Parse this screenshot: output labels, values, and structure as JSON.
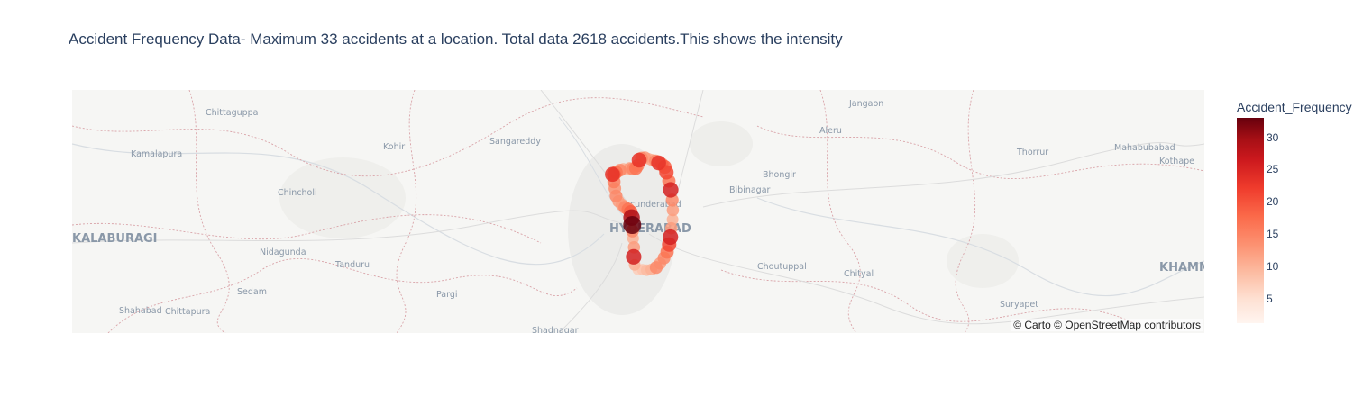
{
  "title": "Accident Frequency Data- Maximum 33 accidents at a location. Total data 2618 accidents.This shows the intensity",
  "map": {
    "attribution": "© Carto © OpenStreetMap contributors",
    "place_labels": [
      {
        "name": "Chittaguppa",
        "size": "small"
      },
      {
        "name": "Kamalapura",
        "size": "small"
      },
      {
        "name": "Kohir",
        "size": "small"
      },
      {
        "name": "Sangareddy",
        "size": "small"
      },
      {
        "name": "Chincholi",
        "size": "small"
      },
      {
        "name": "KALABURAGI",
        "size": "large"
      },
      {
        "name": "Nidagunda",
        "size": "small"
      },
      {
        "name": "Tanduru",
        "size": "small"
      },
      {
        "name": "Sedam",
        "size": "small"
      },
      {
        "name": "Shahabad",
        "size": "small"
      },
      {
        "name": "Chittapura",
        "size": "small"
      },
      {
        "name": "Pargi",
        "size": "small"
      },
      {
        "name": "Shadnagar",
        "size": "small"
      },
      {
        "name": "Secunderabad",
        "size": "small"
      },
      {
        "name": "HYDERABAD",
        "size": "large"
      },
      {
        "name": "Bhongir",
        "size": "small"
      },
      {
        "name": "Bibinagar",
        "size": "small"
      },
      {
        "name": "Aleru",
        "size": "small"
      },
      {
        "name": "Jangaon",
        "size": "small"
      },
      {
        "name": "Choutuppal",
        "size": "small"
      },
      {
        "name": "Chityal",
        "size": "small"
      },
      {
        "name": "Thorrur",
        "size": "small"
      },
      {
        "name": "Mahabubabad",
        "size": "small"
      },
      {
        "name": "Kothape",
        "size": "small"
      },
      {
        "name": "Suryapet",
        "size": "small"
      },
      {
        "name": "KHAMM",
        "size": "large"
      }
    ]
  },
  "colorbar": {
    "title": "Accident_Frequency",
    "colorscale": [
      "#fff5f0",
      "#fee0d2",
      "#fcbba1",
      "#fc9272",
      "#fb6a4a",
      "#ef3b2c",
      "#cb181d",
      "#a50f15",
      "#67000d"
    ],
    "range": [
      1,
      33
    ],
    "ticks": [
      "30",
      "25",
      "20",
      "15",
      "10",
      "5"
    ]
  },
  "chart_data": {
    "type": "scatter",
    "max_frequency": 33,
    "total_accidents": 2618,
    "points": [
      {
        "lon": 78.3,
        "lat": 17.505,
        "freq": 22
      },
      {
        "lon": 78.305,
        "lat": 17.505,
        "freq": 18
      },
      {
        "lon": 78.312,
        "lat": 17.508,
        "freq": 16
      },
      {
        "lon": 78.325,
        "lat": 17.511,
        "freq": 14
      },
      {
        "lon": 78.336,
        "lat": 17.513,
        "freq": 10
      },
      {
        "lon": 78.348,
        "lat": 17.512,
        "freq": 9
      },
      {
        "lon": 78.357,
        "lat": 17.514,
        "freq": 12
      },
      {
        "lon": 78.367,
        "lat": 17.513,
        "freq": 14
      },
      {
        "lon": 78.377,
        "lat": 17.514,
        "freq": 16
      },
      {
        "lon": 78.383,
        "lat": 17.518,
        "freq": 15
      },
      {
        "lon": 78.388,
        "lat": 17.526,
        "freq": 22
      },
      {
        "lon": 78.396,
        "lat": 17.529,
        "freq": 14
      },
      {
        "lon": 78.407,
        "lat": 17.53,
        "freq": 12
      },
      {
        "lon": 78.419,
        "lat": 17.528,
        "freq": 10
      },
      {
        "lon": 78.431,
        "lat": 17.526,
        "freq": 11
      },
      {
        "lon": 78.442,
        "lat": 17.525,
        "freq": 14
      },
      {
        "lon": 78.452,
        "lat": 17.522,
        "freq": 22
      },
      {
        "lon": 78.463,
        "lat": 17.52,
        "freq": 15
      },
      {
        "lon": 78.472,
        "lat": 17.516,
        "freq": 18
      },
      {
        "lon": 78.478,
        "lat": 17.508,
        "freq": 20
      },
      {
        "lon": 78.486,
        "lat": 17.495,
        "freq": 16
      },
      {
        "lon": 78.492,
        "lat": 17.482,
        "freq": 24
      },
      {
        "lon": 78.497,
        "lat": 17.467,
        "freq": 14
      },
      {
        "lon": 78.499,
        "lat": 17.452,
        "freq": 12
      },
      {
        "lon": 78.498,
        "lat": 17.438,
        "freq": 10
      },
      {
        "lon": 78.494,
        "lat": 17.425,
        "freq": 12
      },
      {
        "lon": 78.491,
        "lat": 17.412,
        "freq": 24
      },
      {
        "lon": 78.487,
        "lat": 17.401,
        "freq": 20
      },
      {
        "lon": 78.48,
        "lat": 17.39,
        "freq": 16
      },
      {
        "lon": 78.47,
        "lat": 17.381,
        "freq": 14
      },
      {
        "lon": 78.457,
        "lat": 17.373,
        "freq": 12
      },
      {
        "lon": 78.444,
        "lat": 17.367,
        "freq": 14
      },
      {
        "lon": 78.428,
        "lat": 17.364,
        "freq": 10
      },
      {
        "lon": 78.413,
        "lat": 17.363,
        "freq": 9
      },
      {
        "lon": 78.399,
        "lat": 17.364,
        "freq": 8
      },
      {
        "lon": 78.384,
        "lat": 17.364,
        "freq": 7
      },
      {
        "lon": 78.373,
        "lat": 17.371,
        "freq": 10
      },
      {
        "lon": 78.37,
        "lat": 17.383,
        "freq": 24
      },
      {
        "lon": 78.371,
        "lat": 17.397,
        "freq": 12
      },
      {
        "lon": 78.368,
        "lat": 17.41,
        "freq": 10
      },
      {
        "lon": 78.366,
        "lat": 17.421,
        "freq": 14
      },
      {
        "lon": 78.365,
        "lat": 17.43,
        "freq": 33
      },
      {
        "lon": 78.363,
        "lat": 17.441,
        "freq": 28
      },
      {
        "lon": 78.36,
        "lat": 17.449,
        "freq": 18
      },
      {
        "lon": 78.352,
        "lat": 17.453,
        "freq": 16
      },
      {
        "lon": 78.341,
        "lat": 17.456,
        "freq": 14
      },
      {
        "lon": 78.331,
        "lat": 17.46,
        "freq": 12
      },
      {
        "lon": 78.32,
        "lat": 17.465,
        "freq": 12
      },
      {
        "lon": 78.312,
        "lat": 17.473,
        "freq": 14
      },
      {
        "lon": 78.308,
        "lat": 17.484,
        "freq": 13
      },
      {
        "lon": 78.305,
        "lat": 17.494,
        "freq": 15
      }
    ]
  }
}
